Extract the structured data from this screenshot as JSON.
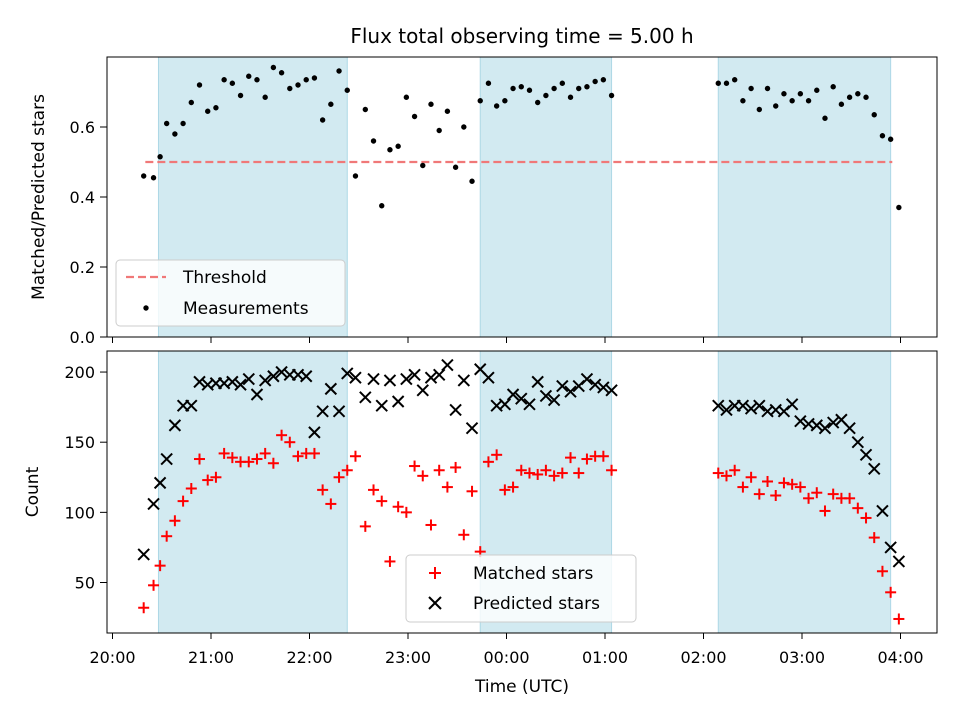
{
  "figure": {
    "title": "Flux total observing time = 5.00 h"
  },
  "colors": {
    "band": "#add8e6",
    "threshold": "#f07878",
    "measurements": "#000000",
    "matched": "#ff0000",
    "predicted": "#000000"
  },
  "chart_data": [
    {
      "type": "scatter",
      "panel": "top",
      "ylabel": "Matched/Predicted stars",
      "xlabel": "",
      "xlim": [
        "20:00",
        "04:00"
      ],
      "ylim": [
        0.0,
        0.8
      ],
      "yticks": [
        0.0,
        0.2,
        0.4,
        0.6
      ],
      "ytick_labels": [
        "0.0",
        "0.2",
        "0.4",
        "0.6"
      ],
      "shaded_bands": [
        [
          "20:28",
          "22:23"
        ],
        [
          "23:44",
          "01:04"
        ],
        [
          "02:09",
          "03:54"
        ]
      ],
      "threshold": {
        "name": "Threshold",
        "value": 0.5,
        "x_range": [
          "20:20",
          "03:55"
        ],
        "style": "dashed"
      },
      "legend": {
        "placement": "lower-left",
        "entries": [
          "Threshold",
          "Measurements"
        ]
      },
      "series": [
        {
          "name": "Measurements",
          "marker": "dot",
          "points": [
            [
              "20:19",
              0.46
            ],
            [
              "20:25",
              0.455
            ],
            [
              "20:29",
              0.515
            ],
            [
              "20:33",
              0.61
            ],
            [
              "20:38",
              0.58
            ],
            [
              "20:43",
              0.61
            ],
            [
              "20:48",
              0.67
            ],
            [
              "20:53",
              0.72
            ],
            [
              "20:58",
              0.645
            ],
            [
              "21:03",
              0.655
            ],
            [
              "21:08",
              0.735
            ],
            [
              "21:13",
              0.725
            ],
            [
              "21:18",
              0.69
            ],
            [
              "21:23",
              0.745
            ],
            [
              "21:28",
              0.735
            ],
            [
              "21:33",
              0.685
            ],
            [
              "21:38",
              0.77
            ],
            [
              "21:43",
              0.755
            ],
            [
              "21:48",
              0.71
            ],
            [
              "21:53",
              0.72
            ],
            [
              "21:58",
              0.735
            ],
            [
              "22:03",
              0.74
            ],
            [
              "22:08",
              0.62
            ],
            [
              "22:13",
              0.665
            ],
            [
              "22:18",
              0.76
            ],
            [
              "22:23",
              0.705
            ],
            [
              "22:28",
              0.46
            ],
            [
              "22:34",
              0.65
            ],
            [
              "22:39",
              0.56
            ],
            [
              "22:44",
              0.375
            ],
            [
              "22:49",
              0.535
            ],
            [
              "22:54",
              0.545
            ],
            [
              "22:59",
              0.685
            ],
            [
              "23:04",
              0.63
            ],
            [
              "23:09",
              0.49
            ],
            [
              "23:14",
              0.665
            ],
            [
              "23:19",
              0.59
            ],
            [
              "23:24",
              0.645
            ],
            [
              "23:29",
              0.485
            ],
            [
              "23:34",
              0.6
            ],
            [
              "23:39",
              0.445
            ],
            [
              "23:44",
              0.675
            ],
            [
              "23:49",
              0.725
            ],
            [
              "23:54",
              0.66
            ],
            [
              "23:59",
              0.675
            ],
            [
              "00:04",
              0.71
            ],
            [
              "00:09",
              0.715
            ],
            [
              "00:14",
              0.705
            ],
            [
              "00:19",
              0.67
            ],
            [
              "00:24",
              0.69
            ],
            [
              "00:29",
              0.71
            ],
            [
              "00:34",
              0.725
            ],
            [
              "00:39",
              0.685
            ],
            [
              "00:44",
              0.71
            ],
            [
              "00:49",
              0.715
            ],
            [
              "00:54",
              0.73
            ],
            [
              "00:59",
              0.735
            ],
            [
              "01:04",
              0.69
            ],
            [
              "02:09",
              0.725
            ],
            [
              "02:14",
              0.725
            ],
            [
              "02:19",
              0.735
            ],
            [
              "02:24",
              0.675
            ],
            [
              "02:29",
              0.71
            ],
            [
              "02:34",
              0.65
            ],
            [
              "02:39",
              0.71
            ],
            [
              "02:44",
              0.66
            ],
            [
              "02:49",
              0.695
            ],
            [
              "02:54",
              0.675
            ],
            [
              "02:59",
              0.695
            ],
            [
              "03:04",
              0.675
            ],
            [
              "03:09",
              0.705
            ],
            [
              "03:14",
              0.625
            ],
            [
              "03:19",
              0.715
            ],
            [
              "03:24",
              0.665
            ],
            [
              "03:29",
              0.685
            ],
            [
              "03:34",
              0.695
            ],
            [
              "03:39",
              0.685
            ],
            [
              "03:44",
              0.635
            ],
            [
              "03:49",
              0.575
            ],
            [
              "03:54",
              0.565
            ],
            [
              "03:59",
              0.37
            ]
          ]
        }
      ]
    },
    {
      "type": "scatter",
      "panel": "bottom",
      "ylabel": "Count",
      "xlabel": "Time (UTC)",
      "xlim": [
        "20:00",
        "04:00"
      ],
      "ylim": [
        14,
        215
      ],
      "yticks": [
        50,
        100,
        150,
        200
      ],
      "ytick_labels": [
        "50",
        "100",
        "150",
        "200"
      ],
      "xticks": [
        "20:00",
        "21:00",
        "22:00",
        "23:00",
        "00:00",
        "01:00",
        "02:00",
        "03:00",
        "04:00"
      ],
      "shaded_bands": [
        [
          "20:28",
          "22:23"
        ],
        [
          "23:44",
          "01:04"
        ],
        [
          "02:09",
          "03:54"
        ]
      ],
      "legend": {
        "placement": "lower-center",
        "entries": [
          "Matched stars",
          "Predicted stars"
        ]
      },
      "series": [
        {
          "name": "Matched stars",
          "marker": "plus",
          "points": [
            [
              "20:19",
              32
            ],
            [
              "20:25",
              48
            ],
            [
              "20:29",
              62
            ],
            [
              "20:33",
              83
            ],
            [
              "20:38",
              94
            ],
            [
              "20:43",
              108
            ],
            [
              "20:48",
              117
            ],
            [
              "20:53",
              138
            ],
            [
              "20:58",
              123
            ],
            [
              "21:03",
              125
            ],
            [
              "21:08",
              142
            ],
            [
              "21:13",
              139
            ],
            [
              "21:18",
              136
            ],
            [
              "21:23",
              136
            ],
            [
              "21:28",
              138
            ],
            [
              "21:33",
              142
            ],
            [
              "21:38",
              135
            ],
            [
              "21:43",
              155
            ],
            [
              "21:48",
              150
            ],
            [
              "21:53",
              140
            ],
            [
              "21:58",
              142
            ],
            [
              "22:03",
              142
            ],
            [
              "22:08",
              116
            ],
            [
              "22:13",
              106
            ],
            [
              "22:18",
              125
            ],
            [
              "22:23",
              130
            ],
            [
              "22:28",
              140
            ],
            [
              "22:34",
              90
            ],
            [
              "22:39",
              116
            ],
            [
              "22:44",
              108
            ],
            [
              "22:49",
              65
            ],
            [
              "22:54",
              104
            ],
            [
              "22:59",
              100
            ],
            [
              "23:04",
              133
            ],
            [
              "23:09",
              126
            ],
            [
              "23:14",
              91
            ],
            [
              "23:19",
              130
            ],
            [
              "23:24",
              118
            ],
            [
              "23:29",
              132
            ],
            [
              "23:34",
              84
            ],
            [
              "23:39",
              115
            ],
            [
              "23:44",
              72
            ],
            [
              "23:49",
              136
            ],
            [
              "23:54",
              141
            ],
            [
              "23:59",
              116
            ],
            [
              "00:04",
              118
            ],
            [
              "00:09",
              130
            ],
            [
              "00:14",
              128
            ],
            [
              "00:19",
              127
            ],
            [
              "00:24",
              130
            ],
            [
              "00:29",
              126
            ],
            [
              "00:34",
              128
            ],
            [
              "00:39",
              139
            ],
            [
              "00:44",
              128
            ],
            [
              "00:49",
              138
            ],
            [
              "00:54",
              140
            ],
            [
              "00:59",
              140
            ],
            [
              "01:04",
              130
            ],
            [
              "02:09",
              128
            ],
            [
              "02:14",
              126
            ],
            [
              "02:19",
              130
            ],
            [
              "02:24",
              118
            ],
            [
              "02:29",
              125
            ],
            [
              "02:34",
              113
            ],
            [
              "02:39",
              122
            ],
            [
              "02:44",
              112
            ],
            [
              "02:49",
              121
            ],
            [
              "02:54",
              120
            ],
            [
              "02:59",
              118
            ],
            [
              "03:04",
              110
            ],
            [
              "03:09",
              114
            ],
            [
              "03:14",
              101
            ],
            [
              "03:19",
              113
            ],
            [
              "03:24",
              110
            ],
            [
              "03:29",
              110
            ],
            [
              "03:34",
              103
            ],
            [
              "03:39",
              96
            ],
            [
              "03:44",
              82
            ],
            [
              "03:49",
              58
            ],
            [
              "03:54",
              43
            ],
            [
              "03:59",
              24
            ]
          ]
        },
        {
          "name": "Predicted stars",
          "marker": "x",
          "points": [
            [
              "20:19",
              70
            ],
            [
              "20:25",
              106
            ],
            [
              "20:29",
              121
            ],
            [
              "20:33",
              138
            ],
            [
              "20:38",
              162
            ],
            [
              "20:43",
              176
            ],
            [
              "20:48",
              176
            ],
            [
              "20:53",
              193
            ],
            [
              "20:58",
              191
            ],
            [
              "21:03",
              192
            ],
            [
              "21:08",
              192
            ],
            [
              "21:13",
              193
            ],
            [
              "21:18",
              191
            ],
            [
              "21:23",
              195
            ],
            [
              "21:28",
              184
            ],
            [
              "21:33",
              194
            ],
            [
              "21:38",
              197
            ],
            [
              "21:43",
              200
            ],
            [
              "21:48",
              198
            ],
            [
              "21:53",
              198
            ],
            [
              "21:58",
              197
            ],
            [
              "22:03",
              157
            ],
            [
              "22:08",
              172
            ],
            [
              "22:13",
              188
            ],
            [
              "22:18",
              172
            ],
            [
              "22:23",
              199
            ],
            [
              "22:28",
              196
            ],
            [
              "22:34",
              182
            ],
            [
              "22:39",
              195
            ],
            [
              "22:44",
              176
            ],
            [
              "22:49",
              194
            ],
            [
              "22:54",
              179
            ],
            [
              "22:59",
              195
            ],
            [
              "23:04",
              198
            ],
            [
              "23:09",
              187
            ],
            [
              "23:14",
              196
            ],
            [
              "23:19",
              198
            ],
            [
              "23:24",
              205
            ],
            [
              "23:29",
              173
            ],
            [
              "23:34",
              194
            ],
            [
              "23:39",
              160
            ],
            [
              "23:44",
              202
            ],
            [
              "23:49",
              196
            ],
            [
              "23:54",
              176
            ],
            [
              "23:59",
              177
            ],
            [
              "00:04",
              184
            ],
            [
              "00:09",
              181
            ],
            [
              "00:14",
              177
            ],
            [
              "00:19",
              193
            ],
            [
              "00:24",
              183
            ],
            [
              "00:29",
              180
            ],
            [
              "00:34",
              190
            ],
            [
              "00:39",
              186
            ],
            [
              "00:44",
              190
            ],
            [
              "00:49",
              195
            ],
            [
              "00:54",
              191
            ],
            [
              "00:59",
              189
            ],
            [
              "01:04",
              187
            ],
            [
              "02:09",
              176
            ],
            [
              "02:14",
              173
            ],
            [
              "02:19",
              176
            ],
            [
              "02:24",
              176
            ],
            [
              "02:29",
              174
            ],
            [
              "02:34",
              176
            ],
            [
              "02:39",
              172
            ],
            [
              "02:44",
              173
            ],
            [
              "02:49",
              172
            ],
            [
              "02:54",
              177
            ],
            [
              "02:59",
              165
            ],
            [
              "03:04",
              163
            ],
            [
              "03:09",
              162
            ],
            [
              "03:14",
              160
            ],
            [
              "03:19",
              164
            ],
            [
              "03:24",
              166
            ],
            [
              "03:29",
              160
            ],
            [
              "03:34",
              150
            ],
            [
              "03:39",
              141
            ],
            [
              "03:44",
              131
            ],
            [
              "03:49",
              101
            ],
            [
              "03:54",
              75
            ],
            [
              "03:59",
              65
            ]
          ]
        }
      ]
    }
  ]
}
